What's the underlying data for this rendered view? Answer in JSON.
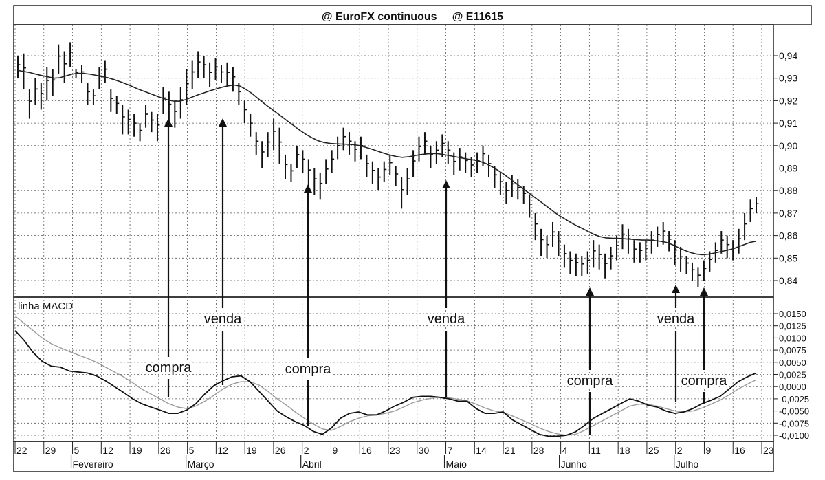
{
  "title": "@ EuroFX continuous     @ E11615",
  "macd_label": "linha MACD",
  "chart_data": [
    {
      "type": "candlestick",
      "title": "@ EuroFX continuous     @ E11615",
      "y_ticks": [
        "0,94",
        "0,93",
        "0,92",
        "0,91",
        "0,90",
        "0,89",
        "0,88",
        "0,87",
        "0,86",
        "0,85",
        "0,84"
      ],
      "ylim": [
        0.834,
        0.95
      ],
      "grid": true,
      "bars_high_low": [
        [
          0.94,
          0.93
        ],
        [
          0.941,
          0.925
        ],
        [
          0.925,
          0.912
        ],
        [
          0.93,
          0.918
        ],
        [
          0.928,
          0.916
        ],
        [
          0.935,
          0.92
        ],
        [
          0.934,
          0.922
        ],
        [
          0.945,
          0.932
        ],
        [
          0.942,
          0.928
        ],
        [
          0.946,
          0.935
        ],
        [
          0.934,
          0.93
        ],
        [
          0.936,
          0.928
        ],
        [
          0.928,
          0.918
        ],
        [
          0.925,
          0.918
        ],
        [
          0.935,
          0.925
        ],
        [
          0.938,
          0.928
        ],
        [
          0.925,
          0.915
        ],
        [
          0.922,
          0.914
        ],
        [
          0.918,
          0.905
        ],
        [
          0.916,
          0.905
        ],
        [
          0.914,
          0.904
        ],
        [
          0.91,
          0.902
        ],
        [
          0.918,
          0.908
        ],
        [
          0.915,
          0.906
        ],
        [
          0.914,
          0.902
        ],
        [
          0.926,
          0.914
        ],
        [
          0.924,
          0.91
        ],
        [
          0.92,
          0.908
        ],
        [
          0.926,
          0.912
        ],
        [
          0.934,
          0.918
        ],
        [
          0.938,
          0.925
        ],
        [
          0.942,
          0.93
        ],
        [
          0.94,
          0.93
        ],
        [
          0.937,
          0.926
        ],
        [
          0.939,
          0.929
        ],
        [
          0.936,
          0.928
        ],
        [
          0.937,
          0.926
        ],
        [
          0.935,
          0.924
        ],
        [
          0.928,
          0.918
        ],
        [
          0.92,
          0.91
        ],
        [
          0.914,
          0.904
        ],
        [
          0.906,
          0.896
        ],
        [
          0.902,
          0.89
        ],
        [
          0.906,
          0.895
        ],
        [
          0.912,
          0.898
        ],
        [
          0.908,
          0.892
        ],
        [
          0.896,
          0.885
        ],
        [
          0.892,
          0.884
        ],
        [
          0.9,
          0.89
        ],
        [
          0.898,
          0.888
        ],
        [
          0.894,
          0.882
        ],
        [
          0.89,
          0.878
        ],
        [
          0.888,
          0.876
        ],
        [
          0.894,
          0.883
        ],
        [
          0.898,
          0.888
        ],
        [
          0.904,
          0.894
        ],
        [
          0.908,
          0.898
        ],
        [
          0.906,
          0.896
        ],
        [
          0.902,
          0.893
        ],
        [
          0.904,
          0.894
        ],
        [
          0.896,
          0.886
        ],
        [
          0.893,
          0.883
        ],
        [
          0.89,
          0.88
        ],
        [
          0.893,
          0.884
        ],
        [
          0.896,
          0.887
        ],
        [
          0.891,
          0.882
        ],
        [
          0.886,
          0.872
        ],
        [
          0.89,
          0.878
        ],
        [
          0.898,
          0.886
        ],
        [
          0.904,
          0.893
        ],
        [
          0.906,
          0.896
        ],
        [
          0.9,
          0.89
        ],
        [
          0.902,
          0.892
        ],
        [
          0.905,
          0.895
        ],
        [
          0.902,
          0.892
        ],
        [
          0.897,
          0.887
        ],
        [
          0.899,
          0.889
        ],
        [
          0.897,
          0.888
        ],
        [
          0.895,
          0.886
        ],
        [
          0.897,
          0.888
        ],
        [
          0.9,
          0.891
        ],
        [
          0.896,
          0.886
        ],
        [
          0.891,
          0.881
        ],
        [
          0.888,
          0.878
        ],
        [
          0.884,
          0.874
        ],
        [
          0.887,
          0.877
        ],
        [
          0.885,
          0.876
        ],
        [
          0.882,
          0.874
        ],
        [
          0.878,
          0.868
        ],
        [
          0.87,
          0.858
        ],
        [
          0.863,
          0.851
        ],
        [
          0.86,
          0.85
        ],
        [
          0.866,
          0.855
        ],
        [
          0.862,
          0.851
        ],
        [
          0.856,
          0.846
        ],
        [
          0.853,
          0.843
        ],
        [
          0.852,
          0.842
        ],
        [
          0.851,
          0.842
        ],
        [
          0.853,
          0.843
        ],
        [
          0.858,
          0.846
        ],
        [
          0.856,
          0.845
        ],
        [
          0.852,
          0.841
        ],
        [
          0.855,
          0.845
        ],
        [
          0.86,
          0.849
        ],
        [
          0.865,
          0.854
        ],
        [
          0.863,
          0.852
        ],
        [
          0.858,
          0.848
        ],
        [
          0.857,
          0.848
        ],
        [
          0.858,
          0.849
        ],
        [
          0.862,
          0.852
        ],
        [
          0.864,
          0.855
        ],
        [
          0.866,
          0.856
        ],
        [
          0.862,
          0.853
        ],
        [
          0.858,
          0.847
        ],
        [
          0.855,
          0.844
        ],
        [
          0.851,
          0.843
        ],
        [
          0.848,
          0.84
        ],
        [
          0.846,
          0.837
        ],
        [
          0.849,
          0.84
        ],
        [
          0.853,
          0.844
        ],
        [
          0.857,
          0.848
        ],
        [
          0.862,
          0.852
        ],
        [
          0.86,
          0.85
        ],
        [
          0.858,
          0.849
        ],
        [
          0.863,
          0.852
        ],
        [
          0.87,
          0.858
        ],
        [
          0.876,
          0.866
        ],
        [
          0.877,
          0.87
        ]
      ],
      "moving_average": [
        0.9335,
        0.933,
        0.9325,
        0.9318,
        0.9312,
        0.9306,
        0.93,
        0.9302,
        0.931,
        0.9318,
        0.9322,
        0.9321,
        0.9318,
        0.9313,
        0.9307,
        0.9302,
        0.9294,
        0.9285,
        0.9275,
        0.9264,
        0.9252,
        0.9242,
        0.9232,
        0.9222,
        0.9212,
        0.9203,
        0.9198,
        0.9198,
        0.9205,
        0.9216,
        0.9226,
        0.9235,
        0.9244,
        0.9252,
        0.926,
        0.9266,
        0.927,
        0.9265,
        0.925,
        0.9232,
        0.921,
        0.9188,
        0.9168,
        0.9148,
        0.9128,
        0.9108,
        0.9088,
        0.9068,
        0.905,
        0.9035,
        0.9022,
        0.9014,
        0.901,
        0.9008,
        0.9007,
        0.9006,
        0.9004,
        0.9,
        0.8992,
        0.8984,
        0.8975,
        0.8966,
        0.8958,
        0.8952,
        0.8948,
        0.895,
        0.8955,
        0.896,
        0.8963,
        0.8965,
        0.8964,
        0.896,
        0.8955,
        0.895,
        0.8945,
        0.894,
        0.8936,
        0.893,
        0.892,
        0.8906,
        0.889,
        0.8872,
        0.8852,
        0.8832,
        0.8812,
        0.8792,
        0.8772,
        0.8752,
        0.8732,
        0.8712,
        0.8692,
        0.8676,
        0.866,
        0.8645,
        0.8632,
        0.8618,
        0.8605,
        0.8595,
        0.859,
        0.8588,
        0.8588,
        0.8586,
        0.8584,
        0.8582,
        0.858,
        0.858,
        0.8578,
        0.8575,
        0.857,
        0.856,
        0.8547,
        0.8535,
        0.8525,
        0.8518,
        0.8515,
        0.8517,
        0.8522,
        0.8528,
        0.8534,
        0.854,
        0.855,
        0.856,
        0.857,
        0.8575
      ]
    },
    {
      "type": "line",
      "title": "linha MACD",
      "y_ticks": [
        "0,0150",
        "0,0125",
        "0,0100",
        "0,0075",
        "0,0050",
        "0,0025",
        "0,0000",
        "-0,0025",
        "-0,0050",
        "-0,0075",
        "-0,0100"
      ],
      "ylim": [
        -0.011,
        0.016
      ],
      "grid": true,
      "series": [
        {
          "values": [
            0.0115,
            0.0095,
            0.007,
            0.0052,
            0.0042,
            0.004,
            0.0032,
            0.003,
            0.0028,
            0.0022,
            0.0012,
            0.0,
            -0.0012,
            -0.0025,
            -0.0035,
            -0.0042,
            -0.0048,
            -0.0055,
            -0.0055,
            -0.0048,
            -0.0035,
            -0.0015,
            0.0002,
            0.0012,
            0.002,
            0.0022,
            0.001,
            -0.001,
            -0.003,
            -0.005,
            -0.0062,
            -0.0072,
            -0.008,
            -0.0092,
            -0.0098,
            -0.0085,
            -0.0065,
            -0.0055,
            -0.0052,
            -0.0058,
            -0.0058,
            -0.005,
            -0.004,
            -0.0032,
            -0.0022,
            -0.002,
            -0.002,
            -0.0022,
            -0.0025,
            -0.003,
            -0.003,
            -0.0045,
            -0.0055,
            -0.0055,
            -0.0052,
            -0.0068,
            -0.0078,
            -0.0088,
            -0.0098,
            -0.0102,
            -0.0102,
            -0.01,
            -0.0093,
            -0.008,
            -0.0065,
            -0.0055,
            -0.0045,
            -0.0035,
            -0.0025,
            -0.003,
            -0.0038,
            -0.0042,
            -0.005,
            -0.0055,
            -0.0052,
            -0.0045,
            -0.0035,
            -0.0028,
            -0.002,
            -0.0005,
            0.001,
            0.002,
            0.0028
          ]
        },
        {
          "values": [
            0.0145,
            0.013,
            0.0115,
            0.01,
            0.0088,
            0.008,
            0.0072,
            0.0065,
            0.0058,
            0.005,
            0.004,
            0.003,
            0.002,
            0.0008,
            -0.0005,
            -0.0015,
            -0.0025,
            -0.0035,
            -0.0042,
            -0.0045,
            -0.004,
            -0.003,
            -0.0018,
            -0.0005,
            0.0005,
            0.001,
            0.001,
            0.0003,
            -0.001,
            -0.0025,
            -0.0038,
            -0.0052,
            -0.0065,
            -0.0077,
            -0.0087,
            -0.009,
            -0.0082,
            -0.0072,
            -0.0065,
            -0.006,
            -0.0058,
            -0.0055,
            -0.005,
            -0.0042,
            -0.0033,
            -0.0028,
            -0.0024,
            -0.0022,
            -0.0023,
            -0.0026,
            -0.0029,
            -0.0036,
            -0.0044,
            -0.005,
            -0.0053,
            -0.006,
            -0.0068,
            -0.0076,
            -0.0085,
            -0.0092,
            -0.0097,
            -0.01,
            -0.0098,
            -0.009,
            -0.008,
            -0.007,
            -0.006,
            -0.005,
            -0.004,
            -0.0036,
            -0.0036,
            -0.004,
            -0.0045,
            -0.005,
            -0.0052,
            -0.005,
            -0.0044,
            -0.0036,
            -0.0028,
            -0.0017,
            -0.0005,
            0.0005,
            0.0014
          ]
        }
      ]
    }
  ],
  "x_axis": {
    "day_labels": [
      "22",
      "29",
      "5",
      "12",
      "19",
      "26",
      "5",
      "12",
      "19",
      "26",
      "2",
      "9",
      "16",
      "23",
      "30",
      "7",
      "14",
      "21",
      "28",
      "4",
      "11",
      "18",
      "25",
      "2",
      "9",
      "16",
      "23"
    ],
    "month_labels": [
      "Fevereiro",
      "Março",
      "Abril",
      "Maio",
      "Junho",
      "Julho"
    ]
  },
  "annotations": [
    {
      "text": "compra"
    },
    {
      "text": "venda"
    },
    {
      "text": "compra"
    },
    {
      "text": "venda"
    },
    {
      "text": "compra"
    },
    {
      "text": "venda"
    },
    {
      "text": "compra"
    }
  ]
}
